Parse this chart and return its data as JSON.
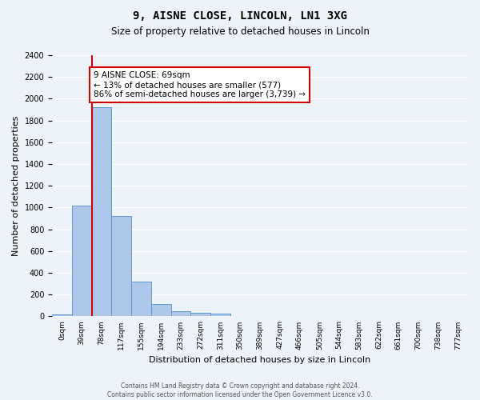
{
  "title": "9, AISNE CLOSE, LINCOLN, LN1 3XG",
  "subtitle": "Size of property relative to detached houses in Lincoln",
  "xlabel": "Distribution of detached houses by size in Lincoln",
  "ylabel": "Number of detached properties",
  "bar_color": "#aec6e8",
  "bar_edge_color": "#5b9bd5",
  "bg_color": "#eef2f9",
  "grid_color": "#ffffff",
  "annotation_box_color": "#ffffff",
  "annotation_border_color": "#cc0000",
  "vline_color": "#cc0000",
  "footer_text": "Contains HM Land Registry data © Crown copyright and database right 2024.\nContains public sector information licensed under the Open Government Licence v3.0.",
  "annotation_line1": "9 AISNE CLOSE: 69sqm",
  "annotation_line2": "← 13% of detached houses are smaller (577)",
  "annotation_line3": "86% of semi-detached houses are larger (3,739) →",
  "bin_labels": [
    "0sqm",
    "39sqm",
    "78sqm",
    "117sqm",
    "155sqm",
    "194sqm",
    "233sqm",
    "272sqm",
    "311sqm",
    "350sqm",
    "389sqm",
    "427sqm",
    "466sqm",
    "505sqm",
    "544sqm",
    "583sqm",
    "622sqm",
    "661sqm",
    "700sqm",
    "738sqm",
    "777sqm"
  ],
  "bar_values": [
    20,
    1020,
    1920,
    920,
    320,
    110,
    50,
    30,
    25,
    0,
    0,
    0,
    0,
    0,
    0,
    0,
    0,
    0,
    0,
    0,
    0
  ],
  "vline_x": 1.5,
  "ylim": [
    0,
    2400
  ],
  "yticks": [
    0,
    200,
    400,
    600,
    800,
    1000,
    1200,
    1400,
    1600,
    1800,
    2000,
    2200,
    2400
  ]
}
